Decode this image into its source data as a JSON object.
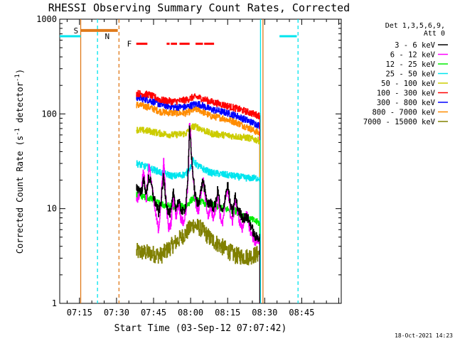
{
  "chart_data": {
    "type": "line",
    "title": "RHESSI Observing Summary Count Rates, Corrected",
    "xlabel": "Start Time (03-Sep-12 07:07:42)",
    "ylabel": "Corrected Count Rate (s",
    "ylabel_sup1": "-1",
    "ylabel_mid": " detector",
    "ylabel_sup2": "-1",
    "ylabel_end": ")",
    "yscale": "log",
    "ylim": [
      1,
      1000
    ],
    "yticks": [
      {
        "value": 1,
        "label": "1"
      },
      {
        "value": 10,
        "label": "10"
      },
      {
        "value": 100,
        "label": "100"
      },
      {
        "value": 1000,
        "label": "1000"
      }
    ],
    "xlim_minutes": [
      67,
      181
    ],
    "xticks": [
      {
        "minute": 75,
        "label": "07:15"
      },
      {
        "minute": 90,
        "label": "07:30"
      },
      {
        "minute": 105,
        "label": "07:45"
      },
      {
        "minute": 120,
        "label": "08:00"
      },
      {
        "minute": 135,
        "label": "08:15"
      },
      {
        "minute": 150,
        "label": "08:30"
      },
      {
        "minute": 165,
        "label": "08:45"
      }
    ],
    "grid": false,
    "legend": {
      "position": "top-right",
      "header": [
        "Det 1,3,5,6,9,",
        "Att 0"
      ],
      "entries": [
        {
          "label": "3 - 6 keV",
          "color": "#000000"
        },
        {
          "label": "6 - 12 keV",
          "color": "#ff00ff"
        },
        {
          "label": "12 - 25 keV",
          "color": "#00ee00"
        },
        {
          "label": "25 - 50 keV",
          "color": "#00e5ee"
        },
        {
          "label": "50 - 100 keV",
          "color": "#cccc00"
        },
        {
          "label": "100 - 300 keV",
          "color": "#ff0000"
        },
        {
          "label": "300 - 800 keV",
          "color": "#0000ff"
        },
        {
          "label": "800 - 7000 keV",
          "color": "#ff8c00"
        },
        {
          "label": "7000 - 15000 keV",
          "color": "#808000"
        }
      ]
    },
    "series": [
      {
        "name": "7000 - 15000 keV",
        "color": "#808000",
        "x": [
          98,
          103,
          108,
          113,
          118,
          121,
          124,
          128,
          133,
          138,
          143,
          147,
          148
        ],
        "y": [
          3.5,
          3.4,
          3.2,
          4.2,
          5.5,
          6.8,
          6.2,
          4.8,
          3.9,
          3.2,
          3.1,
          3.3,
          3.4
        ]
      },
      {
        "name": "800 - 7000 keV",
        "color": "#ff8c00",
        "x": [
          98,
          103,
          108,
          113,
          118,
          121,
          123,
          128,
          133,
          138,
          143,
          148
        ],
        "y": [
          125,
          118,
          105,
          102,
          102,
          110,
          112,
          95,
          90,
          82,
          72,
          62
        ]
      },
      {
        "name": "300 - 800 keV",
        "color": "#0000ff",
        "x": [
          98,
          103,
          108,
          113,
          118,
          121,
          123,
          128,
          133,
          138,
          143,
          148
        ],
        "y": [
          150,
          140,
          125,
          118,
          118,
          125,
          128,
          112,
          105,
          97,
          85,
          75
        ]
      },
      {
        "name": "100 - 300 keV",
        "color": "#ff0000",
        "x": [
          98,
          103,
          108,
          113,
          118,
          121,
          123,
          128,
          133,
          138,
          143,
          148
        ],
        "y": [
          165,
          160,
          140,
          135,
          140,
          150,
          150,
          135,
          125,
          115,
          105,
          95
        ]
      },
      {
        "name": "50 - 100 keV",
        "color": "#cccc00",
        "x": [
          98,
          103,
          108,
          113,
          118,
          121,
          123,
          128,
          133,
          138,
          143,
          148
        ],
        "y": [
          68,
          66,
          62,
          60,
          62,
          74,
          72,
          62,
          60,
          58,
          56,
          52
        ]
      },
      {
        "name": "25 - 50 keV",
        "color": "#00e5ee",
        "x": [
          98,
          103,
          108,
          113,
          118,
          120,
          121,
          123,
          128,
          133,
          138,
          143,
          148
        ],
        "y": [
          30,
          27,
          24,
          22,
          23,
          28,
          32,
          28,
          24,
          23,
          22,
          21,
          21
        ]
      },
      {
        "name": "12 - 25 keV",
        "color": "#00ee00",
        "x": [
          98,
          103,
          108,
          113,
          118,
          121,
          123,
          128,
          133,
          138,
          143,
          148
        ],
        "y": [
          14,
          13,
          11,
          10.5,
          10.5,
          13,
          12,
          11,
          10,
          9.5,
          8,
          7
        ]
      },
      {
        "name": "6 - 12 keV",
        "color": "#ff00ff",
        "x": [
          98,
          100,
          101,
          102,
          103,
          104,
          105,
          106,
          107,
          108,
          109,
          110,
          111,
          112,
          113,
          114,
          115,
          116,
          117,
          118,
          119,
          119.5,
          120,
          120.5,
          121,
          121.5,
          122,
          123,
          124,
          125,
          126,
          127,
          128,
          129,
          130,
          131,
          132,
          133,
          134,
          135,
          136,
          137,
          138,
          139,
          140,
          141,
          142,
          143,
          144,
          145,
          146,
          147,
          148
        ],
        "y": [
          12,
          16,
          26,
          12,
          28,
          20,
          12,
          8,
          6,
          12,
          34,
          12,
          6,
          7,
          14,
          8,
          12,
          8,
          7,
          9,
          22,
          80,
          55,
          30,
          22,
          14,
          11,
          9,
          14,
          20,
          13,
          8,
          11,
          8,
          10,
          14,
          8,
          7,
          12,
          17,
          9,
          7,
          13,
          9,
          7,
          6,
          9,
          8,
          6,
          5,
          4.5,
          4.5,
          4.5
        ]
      },
      {
        "name": "3 - 6 keV",
        "color": "#000000",
        "x": [
          98,
          100,
          101,
          102,
          103,
          104,
          105,
          106,
          107,
          108,
          109,
          110,
          111,
          112,
          113,
          114,
          115,
          116,
          117,
          118,
          119,
          119.5,
          120,
          120.5,
          121,
          121.5,
          122,
          123,
          124,
          125,
          126,
          127,
          128,
          129,
          130,
          131,
          132,
          133,
          134,
          135,
          136,
          137,
          138,
          139,
          140,
          141,
          142,
          143,
          144,
          145,
          146,
          147,
          148
        ],
        "y": [
          17,
          15,
          20,
          14,
          22,
          18,
          13,
          11,
          9,
          12,
          22,
          12,
          9,
          9,
          15,
          10,
          12,
          10,
          9,
          11,
          25,
          70,
          50,
          30,
          22,
          16,
          13,
          11,
          15,
          20,
          14,
          11,
          12,
          10,
          11,
          16,
          10,
          9,
          14,
          18,
          11,
          9,
          14,
          10,
          9,
          8,
          8,
          8,
          7,
          6,
          5,
          5,
          5
        ]
      }
    ],
    "flags": {
      "S": {
        "label": "S",
        "color": "#e07a1a",
        "start": 75.5,
        "end": 90.5,
        "level": 760
      },
      "N": {
        "label": "N",
        "color": "#00e5ee",
        "segments": [
          [
            67,
            75.5
          ],
          [
            156,
            163
          ]
        ],
        "level": 660
      },
      "F": {
        "label": "F",
        "color": "#ff0000",
        "segments": [
          [
            98,
            102.5
          ],
          [
            110.3,
            111.5
          ],
          [
            112,
            114.5
          ],
          [
            115.5,
            119.6
          ],
          [
            122,
            125
          ],
          [
            125.5,
            129.5
          ]
        ],
        "level": 550
      }
    },
    "vlines": [
      {
        "minute": 75.5,
        "color": "#e07a1a",
        "style": "solid"
      },
      {
        "minute": 82.3,
        "color": "#00e5ee",
        "style": "dashed"
      },
      {
        "minute": 91,
        "color": "#e07a1a",
        "style": "dashed"
      },
      {
        "minute": 148.3,
        "color": "#00e5ee",
        "style": "solid"
      },
      {
        "minute": 149.3,
        "color": "#e07a1a",
        "style": "solid"
      },
      {
        "minute": 163.5,
        "color": "#00e5ee",
        "style": "dashed"
      }
    ],
    "timestamp": "18-Oct-2021 14:23"
  }
}
